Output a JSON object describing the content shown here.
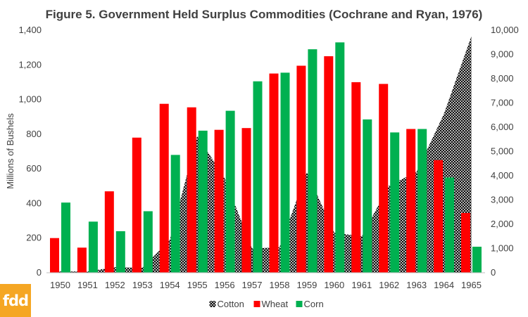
{
  "logo": {
    "text": "fdd"
  },
  "chart_data": {
    "type": "bar",
    "title": "Figure 5. Government Held Surplus Commodities (Cochrane and Ryan, 1976)",
    "ylabel": "Millions of Bushels",
    "ylabel_right": "",
    "categories": [
      "1950",
      "1951",
      "1952",
      "1953",
      "1954",
      "1955",
      "1956",
      "1957",
      "1958",
      "1959",
      "1960",
      "1961",
      "1962",
      "1963",
      "1964",
      "1965"
    ],
    "ylim": [
      0,
      1400
    ],
    "yticks": [
      "0",
      "200",
      "400",
      "600",
      "800",
      "1,000",
      "1,200",
      "1,400"
    ],
    "ylim_right": [
      0,
      10000
    ],
    "yticks_right": [
      "0",
      "1,000",
      "2,000",
      "3,000",
      "4,000",
      "5,000",
      "6,000",
      "7,000",
      "8,000",
      "9,000",
      "10,000"
    ],
    "legend_position": "bottom",
    "grid": false,
    "series": [
      {
        "name": "Cotton",
        "type": "area",
        "axis": "right",
        "pattern": "crosshatch",
        "values": [
          50,
          50,
          230,
          200,
          1350,
          5650,
          3900,
          1000,
          1050,
          4150,
          1650,
          1500,
          3600,
          4150,
          6550,
          9750
        ]
      },
      {
        "name": "Wheat",
        "type": "bar",
        "axis": "left",
        "color": "#ff0000",
        "values": [
          200,
          145,
          470,
          780,
          975,
          955,
          825,
          835,
          1150,
          1195,
          1250,
          1100,
          1090,
          830,
          650,
          345
        ]
      },
      {
        "name": "Corn",
        "type": "bar",
        "axis": "left",
        "color": "#00b050",
        "values": [
          405,
          295,
          240,
          355,
          680,
          820,
          935,
          1105,
          1155,
          1290,
          1330,
          885,
          810,
          830,
          550,
          150
        ]
      }
    ]
  }
}
